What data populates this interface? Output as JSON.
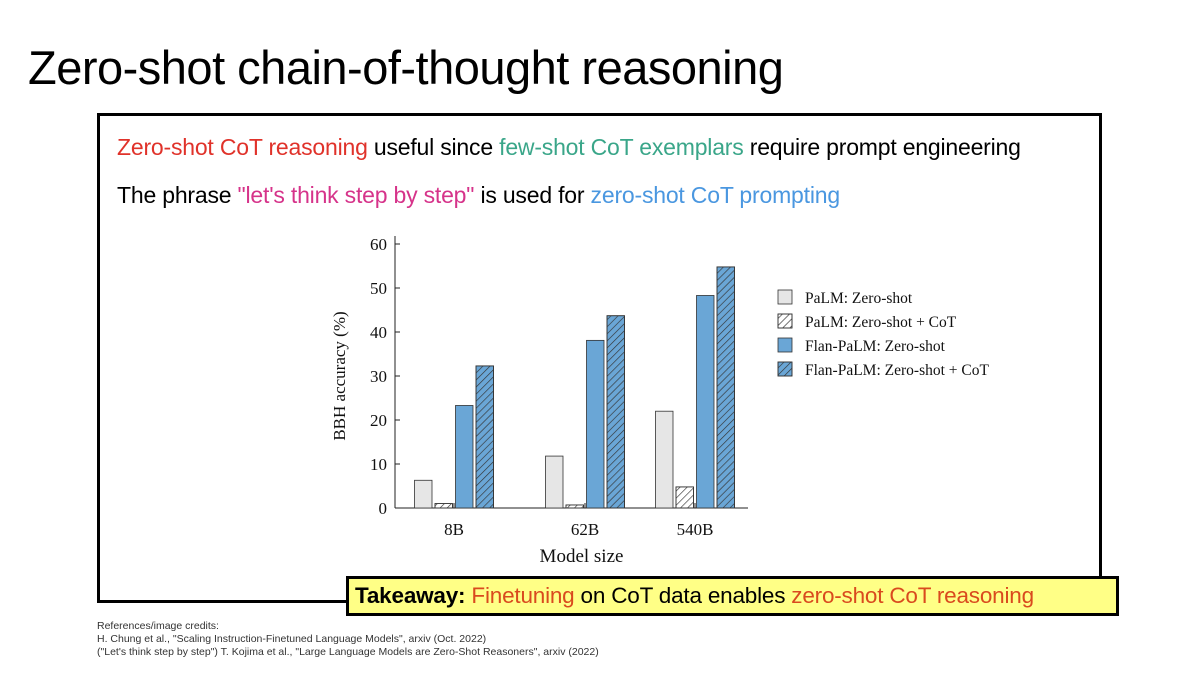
{
  "slide": {
    "title": "Zero-shot chain-of-thought reasoning"
  },
  "colors": {
    "red": "#e0322a",
    "green": "#3aa689",
    "magenta": "#d6338a",
    "blue": "#4a97e0",
    "takeaway_bg": "#ffff86"
  },
  "bullets": {
    "b1": {
      "part1": "Zero-shot CoT reasoning",
      "part2": " useful since ",
      "part3": "few-shot CoT exemplars",
      "part4": " require prompt engineering"
    },
    "b2": {
      "part1": "The phrase ",
      "part2": "\"let's think step by step\"",
      "part3": " is used for ",
      "part4": "zero-shot CoT prompting"
    }
  },
  "takeaway": {
    "label": "Takeaway:",
    "part1": " ",
    "part2": "Finetuning",
    "part3": " on CoT data enables ",
    "part4": "zero-shot CoT reasoning"
  },
  "references": {
    "heading": "References/image credits:",
    "line1": "H. Chung et al., \"Scaling Instruction-Finetuned Language Models\", arxiv (Oct. 2022)",
    "line2": "(\"Let's think step by step\") T. Kojima et al., \"Large Language Models are Zero-Shot Reasoners\", arxiv (2022)"
  },
  "chart_data": {
    "type": "bar",
    "categories": [
      "8B",
      "62B",
      "540B"
    ],
    "xlabel": "Model size",
    "ylabel": "BBH accuracy (%)",
    "ylim": [
      0,
      60
    ],
    "yticks": [
      0,
      10,
      20,
      30,
      40,
      50,
      60
    ],
    "grid": false,
    "legend_position": "right",
    "series": [
      {
        "name": "PaLM: Zero-shot",
        "values": [
          6.3,
          11.8,
          22.0
        ],
        "color": "#e6e6e6",
        "hatched": false
      },
      {
        "name": "PaLM: Zero-shot + CoT",
        "values": [
          1.0,
          0.7,
          4.8
        ],
        "color": "#ffffff",
        "hatched": true
      },
      {
        "name": "Flan-PaLM: Zero-shot",
        "values": [
          23.3,
          38.1,
          48.3
        ],
        "color": "#6aa6d6",
        "hatched": false
      },
      {
        "name": "Flan-PaLM: Zero-shot + CoT",
        "values": [
          32.3,
          43.7,
          54.8
        ],
        "color": "#6aa6d6",
        "hatched": true
      }
    ]
  }
}
